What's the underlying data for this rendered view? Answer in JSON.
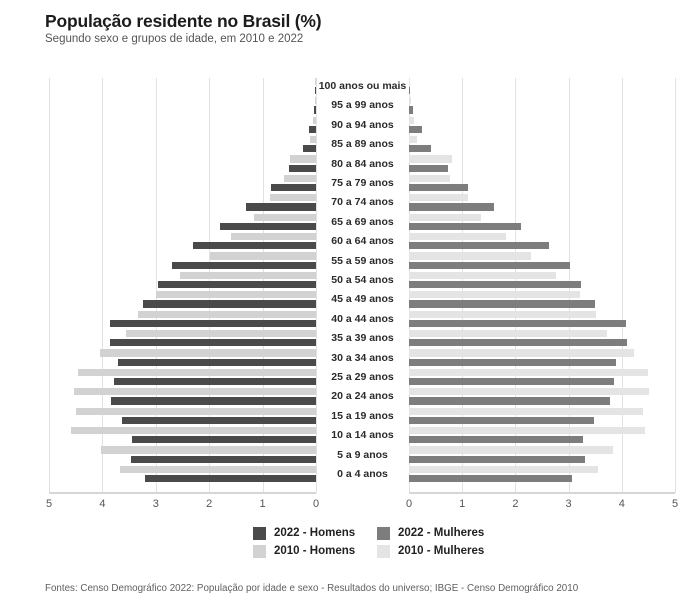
{
  "header": {
    "title": "População residente no Brasil (%)",
    "subtitle": "Segundo sexo e grupos de idade, em 2010 e 2022"
  },
  "footer": {
    "source": "Fontes: Censo Demográfico 2022: População por idade e sexo - Resultados do universo; IBGE - Censo Demográfico 2010"
  },
  "colors": {
    "men_2022": "#4a4a4a",
    "men_2010": "#d2d2d2",
    "women_2022": "#7d7d7d",
    "women_2010": "#e4e4e4",
    "gridline": "#e2e2e2",
    "axis": "#d6d6d6"
  },
  "legend": {
    "items": [
      {
        "label": "2022 - Homens",
        "color_key": "men_2022"
      },
      {
        "label": "2022 - Mulheres",
        "color_key": "women_2022"
      },
      {
        "label": "2010 - Homens",
        "color_key": "men_2010"
      },
      {
        "label": "2010 - Mulheres",
        "color_key": "women_2010"
      }
    ]
  },
  "chart_data": {
    "type": "bar",
    "subtype": "population-pyramid",
    "title": "População residente no Brasil (%)",
    "unit": "%",
    "xmax": 5,
    "grid": true,
    "legend_position": "bottom",
    "axis_ticks_left": [
      "5",
      "4",
      "3",
      "2",
      "1",
      "0"
    ],
    "axis_ticks_right": [
      "0",
      "1",
      "2",
      "3",
      "4",
      "5"
    ],
    "categories": [
      "100 anos ou mais",
      "95 a 99 anos",
      "90 a 94 anos",
      "85 a 89 anos",
      "80 a 84 anos",
      "75 a 79 anos",
      "70 a 74 anos",
      "65 a 69 anos",
      "60 a 64 anos",
      "55 a 59 anos",
      "50 a 54 anos",
      "45 a 49 anos",
      "40 a 44 anos",
      "35 a 39 anos",
      "30 a 34 anos",
      "25 a 29 anos",
      "20 a 24 anos",
      "15 a 19 anos",
      "10 a 14 anos",
      "5 a 9 anos",
      "0 a 4 anos"
    ],
    "series": [
      {
        "name": "2010 - Homens",
        "side": "left",
        "row_slot": "top",
        "color_key": "men_2010",
        "values": [
          0.01,
          0.02,
          0.06,
          0.12,
          0.49,
          0.59,
          0.87,
          1.17,
          1.59,
          1.99,
          2.55,
          3.0,
          3.33,
          3.55,
          4.04,
          4.45,
          4.53,
          4.49,
          4.58,
          4.02,
          3.67
        ]
      },
      {
        "name": "2022 - Homens",
        "side": "left",
        "row_slot": "bottom",
        "color_key": "men_2022",
        "values": [
          0.01,
          0.04,
          0.13,
          0.25,
          0.51,
          0.84,
          1.31,
          1.79,
          2.3,
          2.69,
          2.96,
          3.24,
          3.85,
          3.86,
          3.71,
          3.78,
          3.83,
          3.63,
          3.45,
          3.46,
          3.2
        ]
      },
      {
        "name": "2010 - Mulheres",
        "side": "right",
        "row_slot": "top",
        "color_key": "women_2010",
        "values": [
          0.02,
          0.03,
          0.1,
          0.15,
          0.81,
          0.77,
          1.1,
          1.36,
          1.82,
          2.29,
          2.77,
          3.21,
          3.51,
          3.72,
          4.23,
          4.49,
          4.52,
          4.39,
          4.43,
          3.83,
          3.55
        ]
      },
      {
        "name": "2022 - Mulheres",
        "side": "right",
        "row_slot": "bottom",
        "color_key": "women_2022",
        "values": [
          0.02,
          0.07,
          0.25,
          0.42,
          0.73,
          1.1,
          1.59,
          2.11,
          2.63,
          3.02,
          3.24,
          3.49,
          4.07,
          4.1,
          3.89,
          3.86,
          3.78,
          3.48,
          3.28,
          3.31,
          3.07
        ]
      }
    ]
  }
}
